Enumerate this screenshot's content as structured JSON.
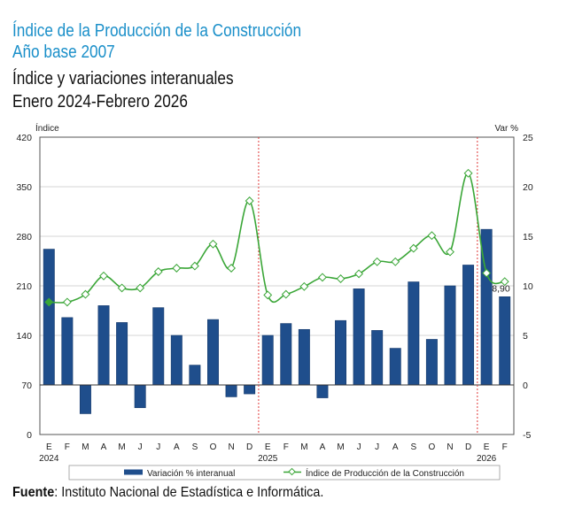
{
  "header": {
    "line1": "Índice de la Producción de la Construcción",
    "line2": "Año base 2007",
    "line3": "Índice y variaciones interanuales",
    "line4": "Enero 2024-Febrero 2026"
  },
  "colors": {
    "title": "#1a8fc9",
    "bar": "#1f4e8c",
    "line": "#3aa637",
    "divider": "#e03a3a"
  },
  "chart_data": {
    "type": "bar+line",
    "categories": [
      "E",
      "F",
      "M",
      "A",
      "M",
      "J",
      "J",
      "A",
      "S",
      "O",
      "N",
      "D",
      "E",
      "F",
      "M",
      "A",
      "M",
      "J",
      "J",
      "A",
      "S",
      "O",
      "N",
      "D",
      "E",
      "F"
    ],
    "year_labels": [
      {
        "index": 0,
        "label": "2024"
      },
      {
        "index": 12,
        "label": "2025"
      },
      {
        "index": 24,
        "label": "2026"
      }
    ],
    "left_axis": {
      "label": "Índice",
      "range": [
        0,
        420
      ],
      "ticks": [
        0,
        70,
        140,
        210,
        280,
        350,
        420
      ]
    },
    "right_axis": {
      "label": "Var %",
      "range": [
        -5,
        25
      ],
      "ticks": [
        -5,
        0,
        5,
        10,
        15,
        20,
        25
      ]
    },
    "grid": true,
    "year_dividers_after_index": [
      11,
      23
    ],
    "series": [
      {
        "name": "Variación % interanual",
        "type": "bar",
        "axis": "right",
        "values": [
          13.7,
          6.8,
          -2.9,
          8.0,
          6.3,
          -2.3,
          7.8,
          5.0,
          2.0,
          6.6,
          -1.2,
          -0.9,
          5.0,
          6.2,
          5.6,
          -1.3,
          6.5,
          9.7,
          5.5,
          3.7,
          10.4,
          4.6,
          10.0,
          12.1,
          15.7,
          8.9
        ]
      },
      {
        "name": "Índice de Producción de la Construcción",
        "type": "line",
        "axis": "left",
        "values": [
          187,
          187,
          198,
          224,
          207,
          207,
          230,
          235,
          238,
          269,
          235,
          330,
          197,
          198,
          209,
          222,
          220,
          227,
          244,
          244,
          263,
          281,
          258,
          369,
          228,
          216
        ]
      }
    ],
    "annotations": [
      {
        "index": 25,
        "label": "8,90"
      }
    ],
    "legend_placement": "bottom"
  },
  "footer": {
    "source_label": "Fuente",
    "source_text": ": Instituto Nacional de Estadística e Informática."
  }
}
